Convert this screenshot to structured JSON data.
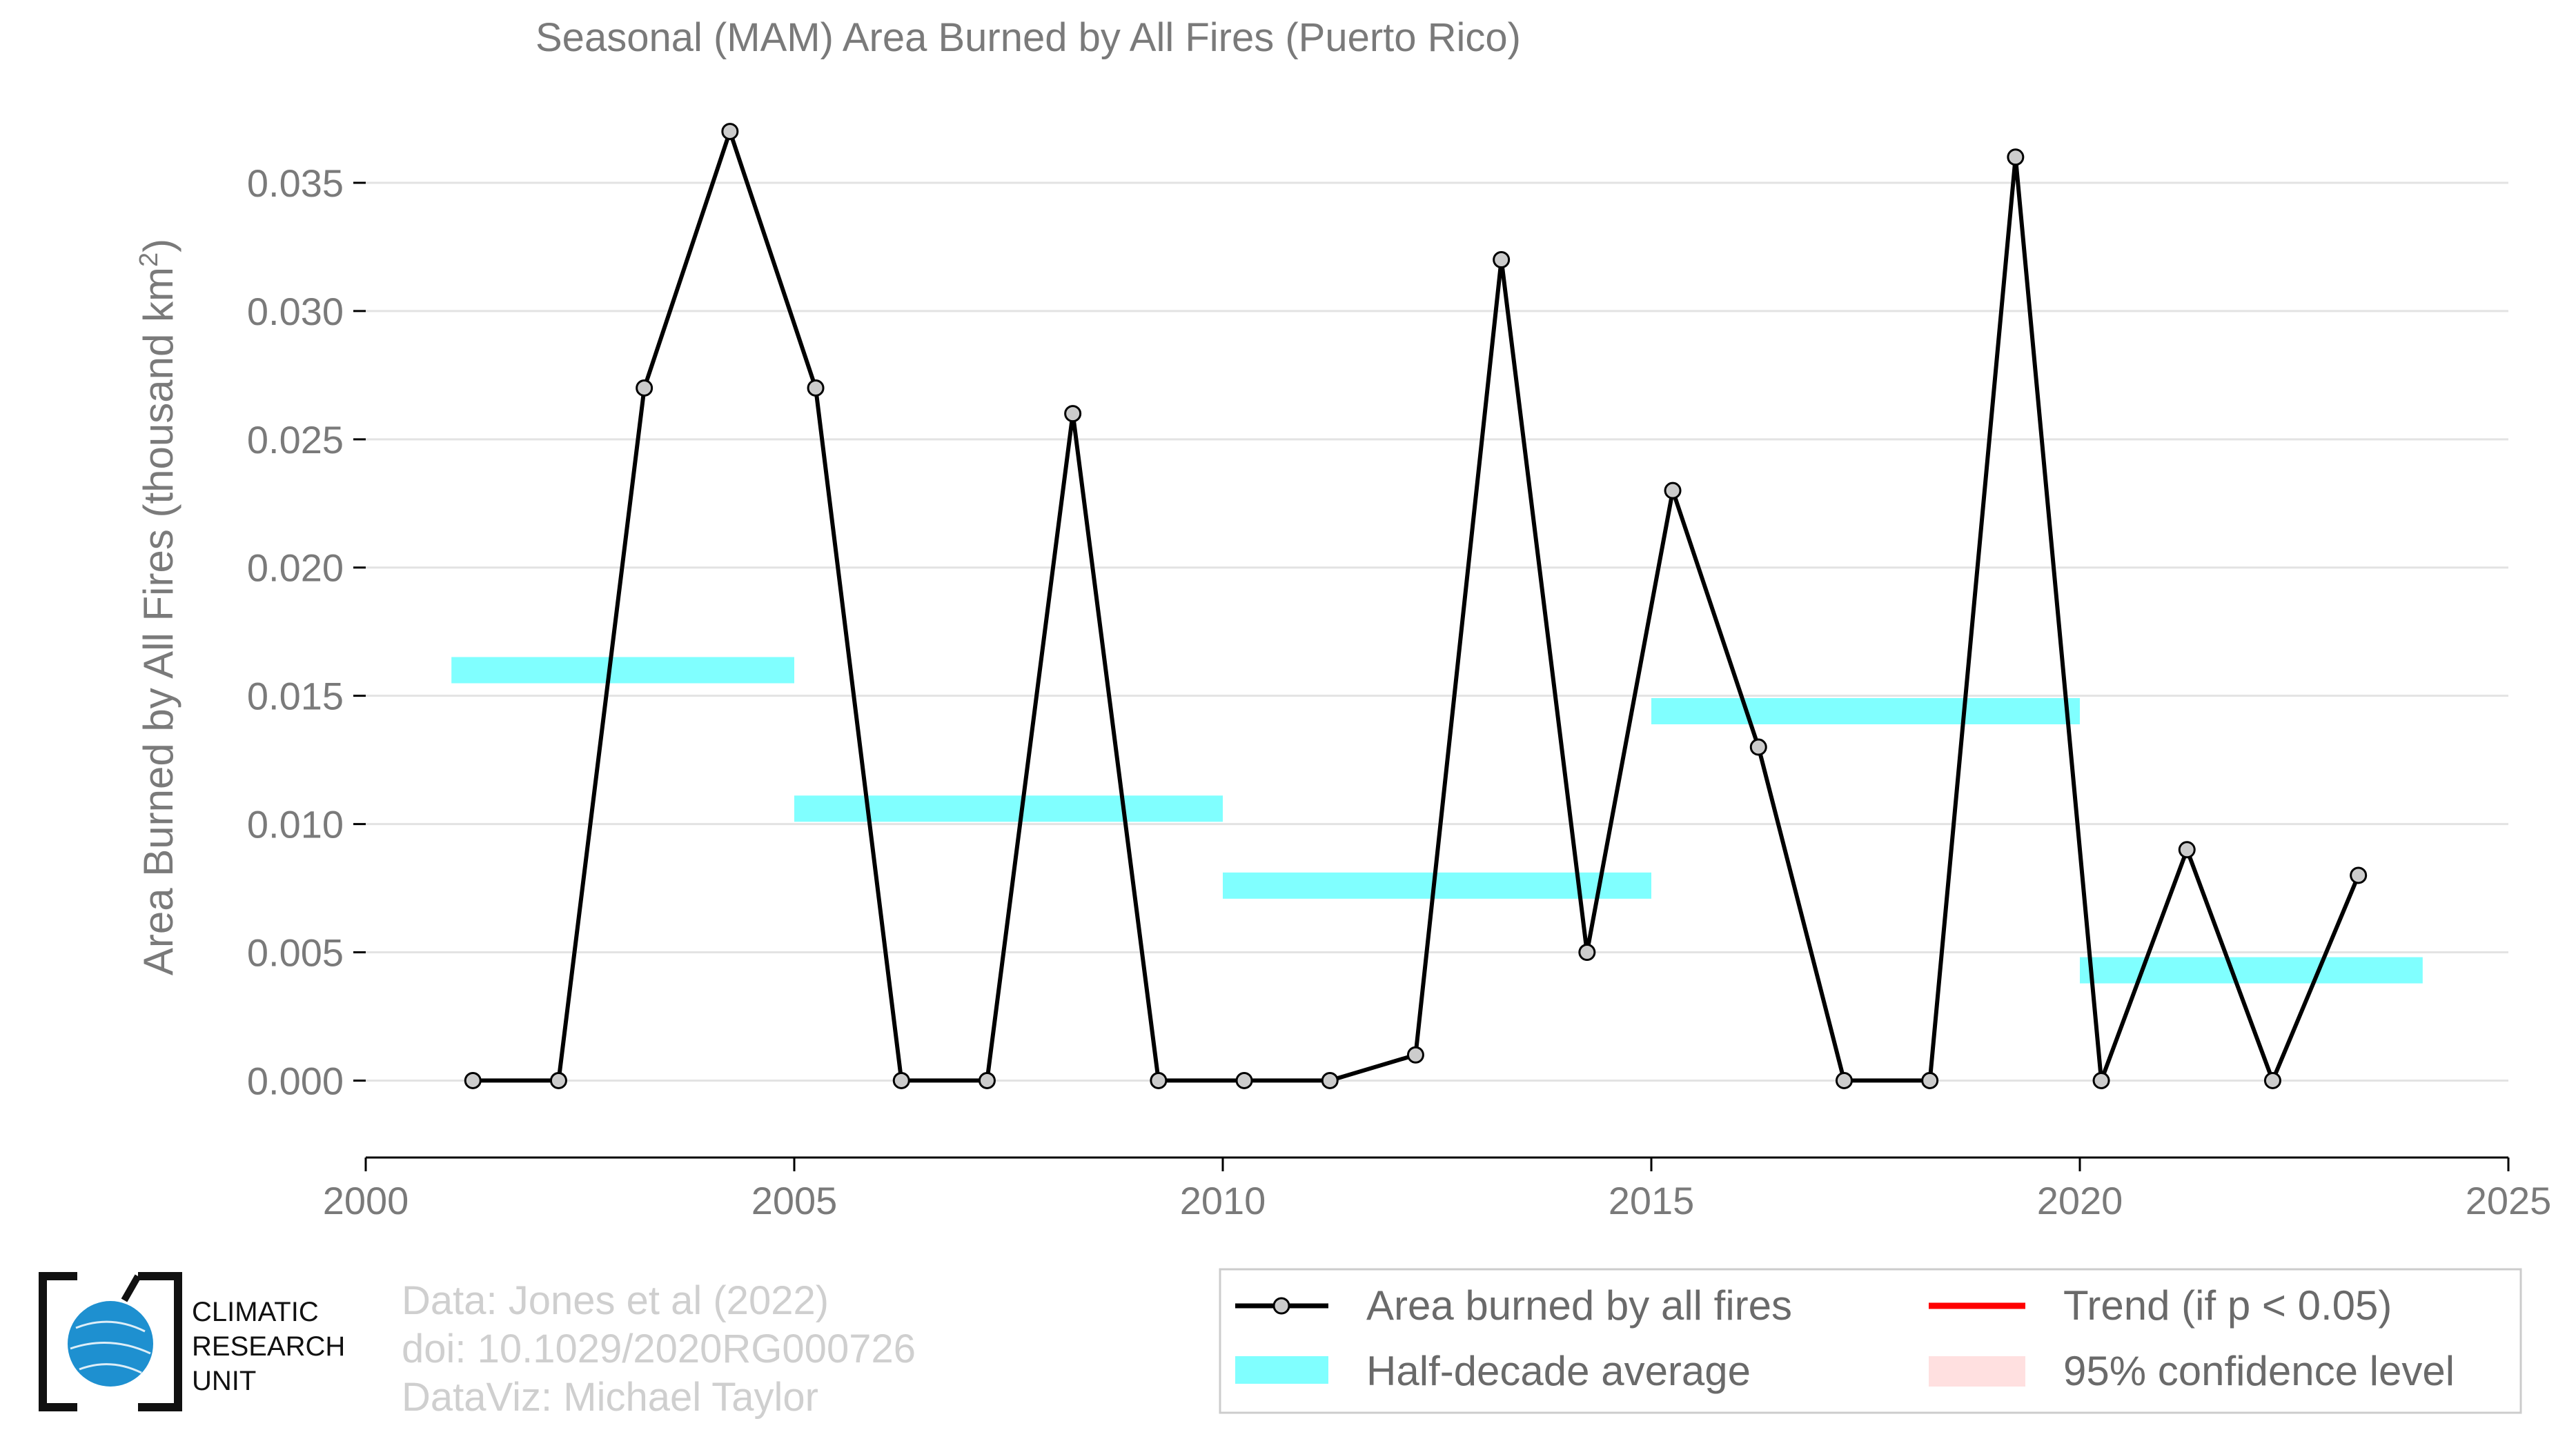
{
  "chart_data": {
    "type": "line",
    "title": "Seasonal (MAM) Area Burned by All Fires (Puerto Rico)",
    "ylabel": "Area Burned by All Fires (thousand km",
    "ylabel_sup": "2",
    "ylabel_close": ")",
    "xlim": [
      2000,
      2025
    ],
    "ylim": [
      -0.003,
      0.0375
    ],
    "xticks": [
      2000,
      2005,
      2010,
      2015,
      2020,
      2025
    ],
    "yticks": [
      0.0,
      0.005,
      0.01,
      0.015,
      0.02,
      0.025,
      0.03,
      0.035
    ],
    "ytick_labels": [
      "0.000",
      "0.005",
      "0.010",
      "0.015",
      "0.020",
      "0.025",
      "0.030",
      "0.035"
    ],
    "grid": "horizontal",
    "series": [
      {
        "name": "Area burned by all fires",
        "color": "#000000",
        "x": [
          2001.25,
          2002.25,
          2003.25,
          2004.25,
          2005.25,
          2006.25,
          2007.25,
          2008.25,
          2009.25,
          2010.25,
          2011.25,
          2012.25,
          2013.25,
          2014.25,
          2015.25,
          2016.25,
          2017.25,
          2018.25,
          2019.25,
          2020.25,
          2021.25,
          2022.25,
          2023.25
        ],
        "y": [
          0.0,
          0.0,
          0.027,
          0.037,
          0.027,
          0.0,
          0.0,
          0.026,
          0.0,
          0.0,
          0.0,
          0.001,
          0.032,
          0.005,
          0.023,
          0.013,
          0.0,
          0.0,
          0.036,
          0.0,
          0.009,
          0.0,
          0.008
        ]
      }
    ],
    "half_decade_averages": {
      "name": "Half-decade average",
      "color": "#80ffff",
      "segments": [
        {
          "x0": 2001,
          "x1": 2005,
          "value": 0.016
        },
        {
          "x0": 2005,
          "x1": 2010,
          "value": 0.0106
        },
        {
          "x0": 2010,
          "x1": 2015,
          "value": 0.0076
        },
        {
          "x0": 2015,
          "x1": 2020,
          "value": 0.0144
        },
        {
          "x0": 2020,
          "x1": 2024,
          "value": 0.0043
        }
      ]
    },
    "legend": {
      "placement": "bottom-right",
      "items": [
        {
          "label": "Area burned by all fires",
          "kind": "line-marker",
          "color": "#000000"
        },
        {
          "label": "Trend (if p < 0.05)",
          "kind": "line",
          "color": "#ff0000"
        },
        {
          "label": "Half-decade average",
          "kind": "band",
          "color": "#80ffff"
        },
        {
          "label": "95% confidence level",
          "kind": "patch",
          "color": "#ffe0e0"
        }
      ]
    }
  },
  "credits": {
    "data_source": "Data: Jones et al (2022)",
    "doi": "doi: 10.1029/2020RG000726",
    "dataviz": "DataViz: Michael Taylor"
  },
  "logo": {
    "line1": "CLIMATIC",
    "line2": "RESEARCH",
    "line3": "UNIT",
    "color": "#1e90d0"
  }
}
